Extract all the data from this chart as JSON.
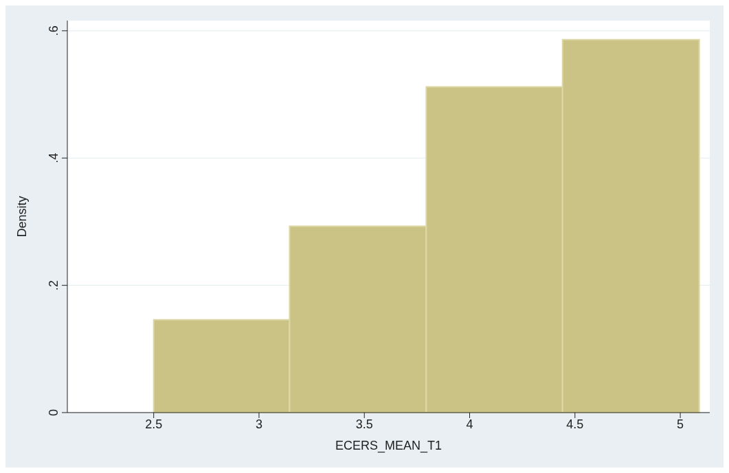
{
  "chart_data": {
    "type": "histogram",
    "xlabel": "ECERS_MEAN_T1",
    "ylabel": "Density",
    "bins": [
      2.5,
      3.145,
      3.794,
      4.441,
      5.09
    ],
    "values": [
      0.146,
      0.293,
      0.512,
      0.586
    ],
    "color": "#cbc385",
    "xlim": [
      2.09,
      5.14
    ],
    "xticks": [
      2.5,
      3,
      3.5,
      4,
      4.5,
      5
    ],
    "ylim": [
      0,
      0.616
    ],
    "yticks": [
      {
        "value": 0,
        "label": "0"
      },
      {
        "value": 0.2,
        "label": ".2"
      },
      {
        "value": 0.4,
        "label": ".4"
      },
      {
        "value": 0.6,
        "label": ".6"
      }
    ],
    "grid": "y"
  }
}
